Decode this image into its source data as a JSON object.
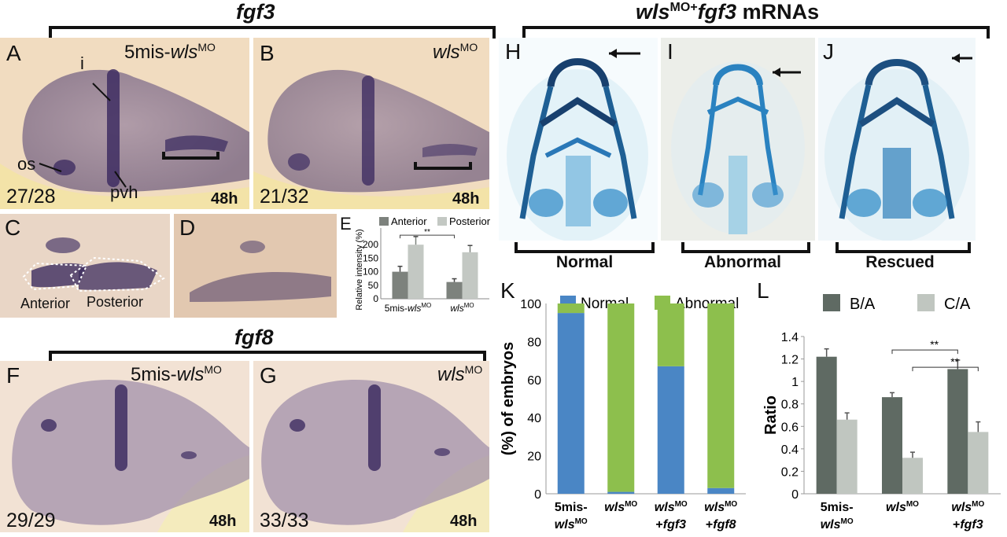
{
  "fgf3_title": "fgf3",
  "fgf8_title": "fgf8",
  "rescue_title": {
    "gene_a": "wls",
    "sup_a": "MO",
    "plus": "+",
    "gene_b": "fgf3",
    "rest": " mRNAs"
  },
  "panels": {
    "A": {
      "letter": "A",
      "geno_pre": "5mis-",
      "geno_gene": "wls",
      "geno_sup": "MO",
      "count": "27/28",
      "stage": "48h",
      "labels": {
        "i": "i",
        "os": "os",
        "pvh": "pvh"
      }
    },
    "B": {
      "letter": "B",
      "geno_gene": "wls",
      "geno_sup": "MO",
      "count": "21/32",
      "stage": "48h"
    },
    "C": {
      "letter": "C",
      "region_anterior": "Anterior",
      "region_posterior": "Posterior"
    },
    "D": {
      "letter": "D"
    },
    "F": {
      "letter": "F",
      "geno_pre": "5mis-",
      "geno_gene": "wls",
      "geno_sup": "MO",
      "count": "29/29",
      "stage": "48h"
    },
    "G": {
      "letter": "G",
      "geno_gene": "wls",
      "geno_sup": "MO",
      "count": "33/33",
      "stage": "48h"
    },
    "H": {
      "letter": "H",
      "label": "Normal"
    },
    "I": {
      "letter": "I",
      "label": "Abnormal"
    },
    "J": {
      "letter": "J",
      "label": "Rescued"
    }
  },
  "chart_data": [
    {
      "panel": "E",
      "type": "bar",
      "ylabel": "Relative intensity (%)",
      "ylim": [
        0,
        250
      ],
      "yticks": [
        0,
        50,
        100,
        150,
        200
      ],
      "categories": [
        "5mis-wlsMO",
        "wlsMO"
      ],
      "category_labels": [
        {
          "pre": "5mis-",
          "gene": "wls",
          "sup": "MO"
        },
        {
          "pre": "",
          "gene": "wls",
          "sup": "MO"
        }
      ],
      "series": [
        {
          "name": "Anterior",
          "color": "#7d827d",
          "values": [
            100,
            62
          ],
          "errors": [
            20,
            12
          ]
        },
        {
          "name": "Posterior",
          "color": "#c3c8c3",
          "values": [
            200,
            172
          ],
          "errors": [
            30,
            25
          ]
        }
      ],
      "significance": [
        {
          "between": [
            0,
            1
          ],
          "label": "**"
        }
      ],
      "legend": "top"
    },
    {
      "panel": "K",
      "type": "bar",
      "stacked": true,
      "ylabel": "(%) of embryos",
      "ylim": [
        0,
        100
      ],
      "yticks": [
        0,
        20,
        40,
        60,
        80,
        100
      ],
      "categories": [
        "5mis-wlsMO",
        "wlsMO",
        "wlsMO+fgf3",
        "wlsMO+fgf8"
      ],
      "category_labels": [
        {
          "l1_pre": "5mis-",
          "l1_gene": "",
          "l2_gene": "wls",
          "l2_sup": "MO"
        },
        {
          "l1_pre": "",
          "l1_gene": "wls",
          "l1_sup": "MO",
          "l2_gene": ""
        },
        {
          "l1_pre": "",
          "l1_gene": "wls",
          "l1_sup": "MO",
          "l2_pre": "+",
          "l2_gene": "fgf3"
        },
        {
          "l1_pre": "",
          "l1_gene": "wls",
          "l1_sup": "MO",
          "l2_pre": "+",
          "l2_gene": "fgf8"
        }
      ],
      "series": [
        {
          "name": "Normal",
          "color": "#4a86c5",
          "values": [
            95,
            1,
            67,
            3
          ]
        },
        {
          "name": "Abnormal",
          "color": "#8dbf4d",
          "values": [
            5,
            99,
            33,
            97
          ]
        }
      ],
      "legend": "top"
    },
    {
      "panel": "L",
      "type": "bar",
      "ylabel": "Ratio",
      "ylim": [
        0,
        1.4
      ],
      "yticks": [
        0,
        0.2,
        0.4,
        0.6,
        0.8,
        1,
        1.2,
        1.4
      ],
      "ytick_labels": [
        "0",
        "0.2",
        "0.4",
        "0.6",
        "0.8",
        "1",
        "1.2",
        "1.4"
      ],
      "categories": [
        "5mis-wlsMO",
        "wlsMO",
        "wlsMO+fgf3"
      ],
      "category_labels": [
        {
          "l1_pre": "5mis-",
          "l2_gene": "wls",
          "l2_sup": "MO"
        },
        {
          "l1_gene": "wls",
          "l1_sup": "MO"
        },
        {
          "l1_gene": "wls",
          "l1_sup": "MO",
          "l2_pre": "+",
          "l2_gene": "fgf3"
        }
      ],
      "series": [
        {
          "name": "B/A",
          "color": "#5f6a63",
          "values": [
            1.22,
            0.86,
            1.11
          ],
          "errors": [
            0.07,
            0.04,
            0.08
          ]
        },
        {
          "name": "C/A",
          "color": "#c0c6c0",
          "values": [
            0.66,
            0.32,
            0.55
          ],
          "errors": [
            0.06,
            0.05,
            0.09
          ]
        }
      ],
      "significance": [
        {
          "series": 0,
          "between": [
            1,
            2
          ],
          "label": "**"
        },
        {
          "series": 1,
          "between": [
            1,
            2
          ],
          "label": "**"
        }
      ],
      "legend": "top"
    }
  ]
}
